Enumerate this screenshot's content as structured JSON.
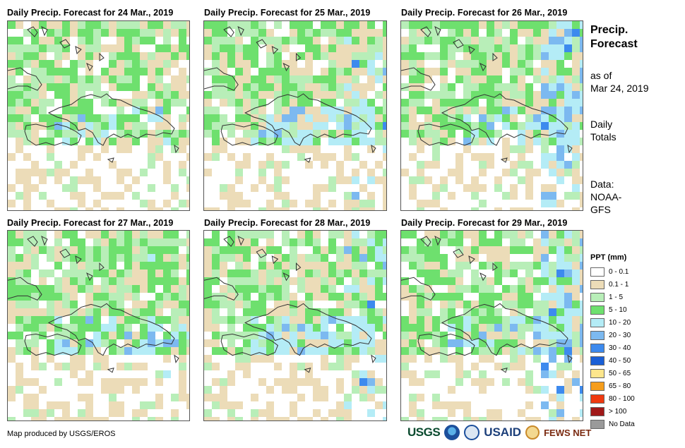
{
  "panels": [
    {
      "title": "Daily Precip. Forecast for 24 Mar., 2019",
      "seed": 11,
      "west": 0.28,
      "east": 0.3,
      "extra": 0.0
    },
    {
      "title": "Daily Precip. Forecast for 25 Mar., 2019",
      "seed": 23,
      "west": 0.3,
      "east": 0.55,
      "extra": 0.25
    },
    {
      "title": "Daily Precip. Forecast for 26 Mar., 2019",
      "seed": 37,
      "west": 0.05,
      "east": 0.45,
      "extra": 0.55
    },
    {
      "title": "Daily Precip. Forecast for 27 Mar., 2019",
      "seed": 41,
      "west": 0.2,
      "east": 0.35,
      "extra": 0.05
    },
    {
      "title": "Daily Precip. Forecast for 28 Mar., 2019",
      "seed": 53,
      "west": 0.55,
      "east": 0.65,
      "extra": 0.25
    },
    {
      "title": "Daily Precip. Forecast for 29 Mar., 2019",
      "seed": 67,
      "west": 0.12,
      "east": 0.6,
      "extra": 0.45
    }
  ],
  "sidebar": {
    "heading_line1": "Precip.",
    "heading_line2": "Forecast",
    "asof_line1": "as of",
    "asof_line2": "Mar 24, 2019",
    "totals_line1": "Daily",
    "totals_line2": "Totals",
    "source_line1": "Data:",
    "source_line2": "NOAA-",
    "source_line3": "GFS"
  },
  "legend": {
    "title": "PPT (mm)",
    "items": [
      {
        "label": "0 - 0.1",
        "color": "#ffffff"
      },
      {
        "label": "0.1 - 1",
        "color": "#ecdcb8"
      },
      {
        "label": "1 - 5",
        "color": "#b8eeb8"
      },
      {
        "label": "5 - 10",
        "color": "#6ee06e"
      },
      {
        "label": "10 - 20",
        "color": "#b4ecf6"
      },
      {
        "label": "20 - 30",
        "color": "#7cb9f0"
      },
      {
        "label": "30 - 40",
        "color": "#3d8aee"
      },
      {
        "label": "40 - 50",
        "color": "#1a5fd6"
      },
      {
        "label": "50 - 65",
        "color": "#fde68c"
      },
      {
        "label": "65 - 80",
        "color": "#f59d1c"
      },
      {
        "label": "80 - 100",
        "color": "#ef3a10"
      },
      {
        "label": "> 100",
        "color": "#a01818"
      },
      {
        "label": "No Data",
        "color": "#9a9a9a"
      }
    ]
  },
  "credit": "Map produced by USGS/EROS",
  "logos": {
    "usgs": "USGS",
    "usaid": "USAID",
    "fews": "FEWS NET"
  }
}
